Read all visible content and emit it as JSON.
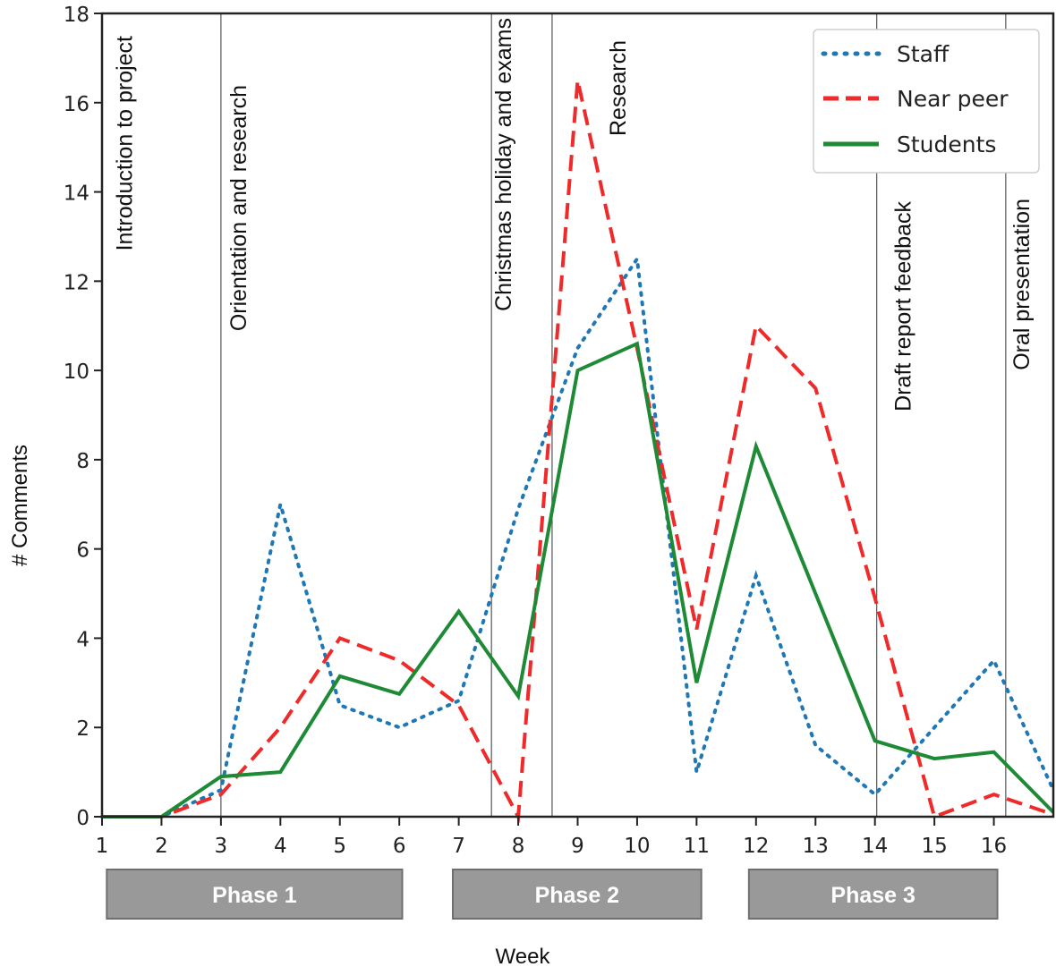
{
  "chart_data": {
    "type": "line",
    "title": "",
    "xlabel": "Week",
    "ylabel": "# Comments",
    "xlim": [
      1,
      17
    ],
    "ylim": [
      0,
      18
    ],
    "grid": false,
    "legend_position": "top-right",
    "x": [
      1,
      2,
      3,
      4,
      5,
      6,
      7,
      8,
      9,
      10,
      11,
      12,
      13,
      14,
      15,
      16,
      17
    ],
    "x_tick_labels": [
      "1",
      "2",
      "3",
      "4",
      "5",
      "6",
      "7",
      "8",
      "9",
      "10",
      "11",
      "12",
      "13",
      "14",
      "15",
      "16"
    ],
    "y_ticks": [
      0,
      2,
      4,
      6,
      8,
      10,
      12,
      14,
      16,
      18
    ],
    "y_tick_labels": [
      "0",
      "2",
      "4",
      "6",
      "8",
      "10",
      "12",
      "14",
      "16",
      "18"
    ],
    "series": [
      {
        "name": "Staff",
        "style": "dotted",
        "color": "#1f77b4",
        "values": [
          0,
          0,
          0.6,
          7.0,
          2.5,
          2.0,
          2.6,
          6.9,
          10.5,
          12.5,
          1.0,
          5.4,
          1.6,
          0.5,
          2.0,
          3.5,
          0.6
        ]
      },
      {
        "name": "Near peer",
        "style": "dashed",
        "color": "#ee2a2a",
        "values": [
          0,
          0,
          0.5,
          2.0,
          4.0,
          3.5,
          2.5,
          0,
          16.5,
          10.5,
          4.2,
          11.0,
          9.6,
          4.9,
          0,
          0.5,
          0.05
        ]
      },
      {
        "name": "Students",
        "style": "solid",
        "color": "#1e8a35",
        "values": [
          0,
          0,
          0.9,
          1.0,
          3.15,
          2.75,
          4.6,
          2.7,
          10.0,
          10.6,
          3.0,
          8.3,
          5.0,
          1.7,
          1.3,
          1.45,
          0.1
        ]
      }
    ],
    "annotations": [
      {
        "week": 1.35,
        "label": "Introduction to project",
        "line": false
      },
      {
        "week": 3.0,
        "label": "Orientation and research",
        "line": true
      },
      {
        "week": 7.55,
        "label": "Christmas holiday and exams",
        "line": true
      },
      {
        "week": 8.57,
        "label": "Research",
        "line": true
      },
      {
        "week": 14.03,
        "label": "Draft report feedback",
        "line": true
      },
      {
        "week": 16.2,
        "label": "Oral presentation",
        "line": true
      }
    ],
    "phases": [
      {
        "label": "Phase 1",
        "start_week": 1.08,
        "end_week": 6.05
      },
      {
        "label": "Phase 2",
        "start_week": 6.9,
        "end_week": 11.08
      },
      {
        "label": "Phase 3",
        "start_week": 11.88,
        "end_week": 16.06
      }
    ],
    "phase_color": "#999999"
  }
}
